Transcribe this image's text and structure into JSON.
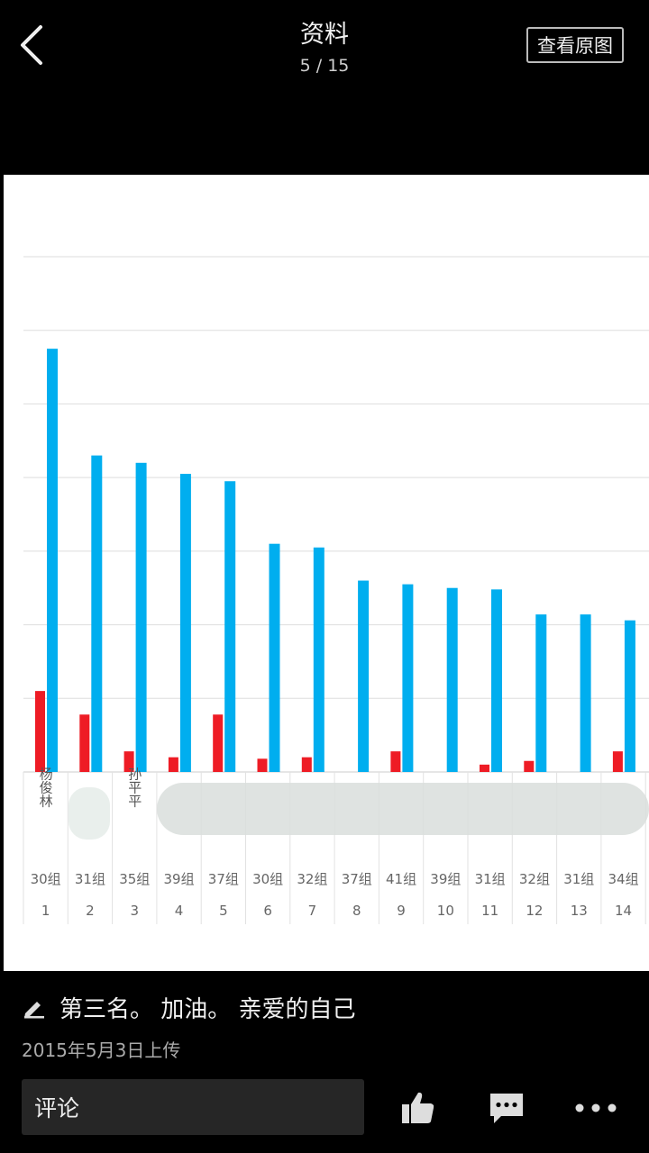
{
  "header": {
    "title": "资料",
    "counter": "5 / 15",
    "view_original": "查看原图"
  },
  "caption": {
    "text": "第三名。 加油。 亲爱的自己",
    "upload_time": "2015年5月3日上传"
  },
  "comment": {
    "placeholder": "评论"
  },
  "chart_data": {
    "type": "bar",
    "categories": [
      "1",
      "2",
      "3",
      "4",
      "5",
      "6",
      "7",
      "8",
      "9",
      "10",
      "11",
      "12",
      "13",
      "14"
    ],
    "groups": [
      "30组",
      "31组",
      "35组",
      "39组",
      "37组",
      "30组",
      "32组",
      "37组",
      "41组",
      "39组",
      "31组",
      "32组",
      "31组",
      "34组"
    ],
    "names": [
      "杨俊林",
      "",
      "孙平平",
      "",
      "",
      "",
      "",
      "",
      "",
      "",
      "",
      "",
      "",
      ""
    ],
    "series": [
      {
        "values": [
          5.75,
          4.3,
          4.2,
          4.05,
          3.95,
          3.1,
          3.05,
          2.6,
          2.55,
          2.5,
          2.48,
          2.14,
          2.14,
          2.06
        ]
      },
      {
        "values": [
          1.1,
          0.78,
          0.28,
          0.2,
          0.78,
          0.18,
          0.2,
          0,
          0.28,
          0,
          0.1,
          0.15,
          0,
          0.28
        ]
      }
    ],
    "ylim": [
      0,
      7
    ],
    "grid": true,
    "colors": {
      "series_blue": "#00AEEF",
      "series_red": "#EE1C25"
    }
  }
}
